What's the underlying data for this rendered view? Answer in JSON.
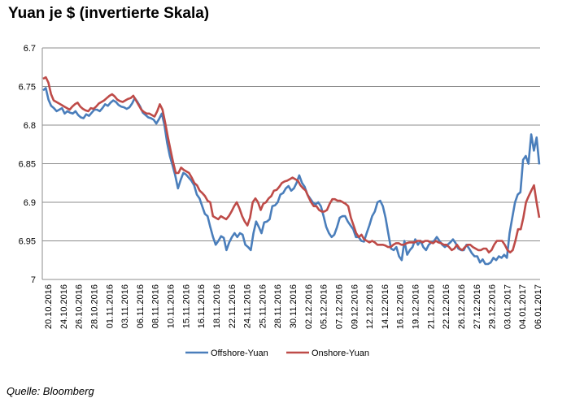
{
  "title": "Yuan je $ (invertierte Skala)",
  "source": "Quelle: Bloomberg",
  "chart_data": {
    "type": "line",
    "title": "Yuan je $ (invertierte Skala)",
    "y_inverted": true,
    "ylim": [
      6.7,
      7.0
    ],
    "y_ticks": [
      "6.7",
      "6.75",
      "6.8",
      "6.85",
      "6.9",
      "6.95",
      "7"
    ],
    "x_ticks": [
      "20.10.2016",
      "24.10.2016",
      "26.10.2016",
      "28.10.2016",
      "01.11.2016",
      "03.11.2016",
      "06.11.2016",
      "08.11.2016",
      "10.11.2016",
      "15.11.2016",
      "16.11.2016",
      "18.11.2016",
      "22.11.2016",
      "24.11.2016",
      "25.11.2016",
      "28.11.2016",
      "30.11.2016",
      "02.12.2016",
      "05.12.2016",
      "07.12.2016",
      "09.12.2016",
      "12.12.2016",
      "14.12.2016",
      "16.12.2016",
      "19.12.2016",
      "21.12.2016",
      "22.12.2016",
      "26.12.2016",
      "27.12.2016",
      "29.12.2016",
      "03.01.2017",
      "04.01.2017",
      "06.01.2017"
    ],
    "grid": true,
    "legend_position": "bottom",
    "series": [
      {
        "name": "Offshore-Yuan",
        "color": "#4a7ebb",
        "values": [
          6.755,
          6.752,
          6.767,
          6.775,
          6.778,
          6.782,
          6.78,
          6.778,
          6.785,
          6.782,
          6.784,
          6.785,
          6.782,
          6.787,
          6.79,
          6.791,
          6.786,
          6.788,
          6.784,
          6.78,
          6.78,
          6.782,
          6.778,
          6.773,
          6.775,
          6.771,
          6.768,
          6.77,
          6.774,
          6.776,
          6.777,
          6.779,
          6.777,
          6.772,
          6.765,
          6.77,
          6.776,
          6.784,
          6.787,
          6.79,
          6.791,
          6.793,
          6.798,
          6.792,
          6.785,
          6.8,
          6.823,
          6.84,
          6.852,
          6.865,
          6.882,
          6.871,
          6.862,
          6.864,
          6.868,
          6.872,
          6.878,
          6.89,
          6.895,
          6.905,
          6.915,
          6.918,
          6.932,
          6.945,
          6.955,
          6.95,
          6.944,
          6.946,
          6.962,
          6.952,
          6.945,
          6.94,
          6.945,
          6.94,
          6.942,
          6.955,
          6.958,
          6.962,
          6.94,
          6.925,
          6.932,
          6.94,
          6.926,
          6.925,
          6.922,
          6.905,
          6.904,
          6.9,
          6.89,
          6.888,
          6.882,
          6.879,
          6.885,
          6.882,
          6.875,
          6.865,
          6.875,
          6.88,
          6.89,
          6.895,
          6.9,
          6.903,
          6.9,
          6.905,
          6.918,
          6.932,
          6.94,
          6.945,
          6.942,
          6.932,
          6.92,
          6.918,
          6.918,
          6.925,
          6.93,
          6.935,
          6.945,
          6.945,
          6.95,
          6.951,
          6.94,
          6.93,
          6.918,
          6.912,
          6.9,
          6.898,
          6.905,
          6.92,
          6.94,
          6.96,
          6.962,
          6.958,
          6.97,
          6.975,
          6.95,
          6.968,
          6.962,
          6.958,
          6.948,
          6.955,
          6.95,
          6.958,
          6.962,
          6.955,
          6.952,
          6.95,
          6.945,
          6.95,
          6.955,
          6.958,
          6.955,
          6.952,
          6.948,
          6.953,
          6.96,
          6.962,
          6.962,
          6.955,
          6.96,
          6.966,
          6.97,
          6.97,
          6.978,
          6.974,
          6.98,
          6.98,
          6.978,
          6.972,
          6.975,
          6.97,
          6.972,
          6.968,
          6.972,
          6.94,
          6.92,
          6.9,
          6.89,
          6.887,
          6.845,
          6.84,
          6.85,
          6.812,
          6.833,
          6.816,
          6.851
        ]
      },
      {
        "name": "Onshore-Yuan",
        "color": "#be4b48",
        "values": [
          6.74,
          6.738,
          6.745,
          6.76,
          6.768,
          6.77,
          6.772,
          6.774,
          6.776,
          6.778,
          6.78,
          6.776,
          6.773,
          6.771,
          6.776,
          6.779,
          6.781,
          6.782,
          6.778,
          6.779,
          6.776,
          6.772,
          6.77,
          6.768,
          6.765,
          6.762,
          6.76,
          6.763,
          6.767,
          6.769,
          6.77,
          6.768,
          6.766,
          6.765,
          6.762,
          6.768,
          6.774,
          6.78,
          6.783,
          6.785,
          6.785,
          6.787,
          6.789,
          6.782,
          6.773,
          6.78,
          6.797,
          6.815,
          6.832,
          6.848,
          6.862,
          6.862,
          6.855,
          6.858,
          6.86,
          6.862,
          6.868,
          6.875,
          6.878,
          6.885,
          6.888,
          6.892,
          6.898,
          6.9,
          6.918,
          6.92,
          6.922,
          6.918,
          6.92,
          6.922,
          6.918,
          6.912,
          6.905,
          6.9,
          6.908,
          6.918,
          6.925,
          6.93,
          6.92,
          6.9,
          6.895,
          6.9,
          6.91,
          6.902,
          6.9,
          6.895,
          6.892,
          6.885,
          6.884,
          6.88,
          6.875,
          6.873,
          6.872,
          6.87,
          6.868,
          6.87,
          6.872,
          6.878,
          6.882,
          6.885,
          6.893,
          6.9,
          6.905,
          6.905,
          6.91,
          6.912,
          6.912,
          6.91,
          6.902,
          6.896,
          6.896,
          6.898,
          6.898,
          6.9,
          6.902,
          6.905,
          6.92,
          6.93,
          6.94,
          6.945,
          6.942,
          6.948,
          6.95,
          6.952,
          6.95,
          6.952,
          6.955,
          6.955,
          6.955,
          6.956,
          6.958,
          6.958,
          6.955,
          6.953,
          6.953,
          6.955,
          6.955,
          6.953,
          6.952,
          6.952,
          6.952,
          6.95,
          6.95,
          6.952,
          6.95,
          6.95,
          6.952,
          6.953,
          6.95,
          6.952,
          6.953,
          6.955,
          6.955,
          6.958,
          6.962,
          6.96,
          6.955,
          6.96,
          6.962,
          6.958,
          6.955,
          6.955,
          6.958,
          6.96,
          6.962,
          6.962,
          6.96,
          6.96,
          6.965,
          6.962,
          6.955,
          6.95,
          6.95,
          6.95,
          6.955,
          6.962,
          6.965,
          6.962,
          6.95,
          6.935,
          6.935,
          6.92,
          6.9,
          6.892,
          6.885,
          6.878,
          6.9,
          6.92
        ]
      }
    ]
  }
}
